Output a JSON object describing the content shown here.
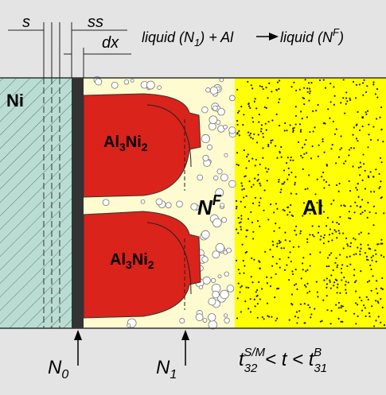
{
  "dimensions": {
    "s": "s",
    "ss": "ss",
    "dx": "dx"
  },
  "reaction": {
    "left": [
      "liquid (N",
      "1",
      ") + Al"
    ],
    "right": [
      "liquid (N",
      "F",
      ")"
    ]
  },
  "regions": {
    "ni": "Ni",
    "phase_top": [
      "Al",
      "3",
      "Ni",
      "2"
    ],
    "phase_bottom": [
      "Al",
      "3",
      "Ni",
      "2"
    ],
    "liquid": [
      "N",
      "F"
    ],
    "al": "Al"
  },
  "markers": {
    "n0": [
      "N",
      "0"
    ],
    "n1": [
      "N",
      "1"
    ]
  },
  "time_condition": [
    "t",
    "32",
    "S/M",
    "< t < t",
    "31",
    "B"
  ]
}
